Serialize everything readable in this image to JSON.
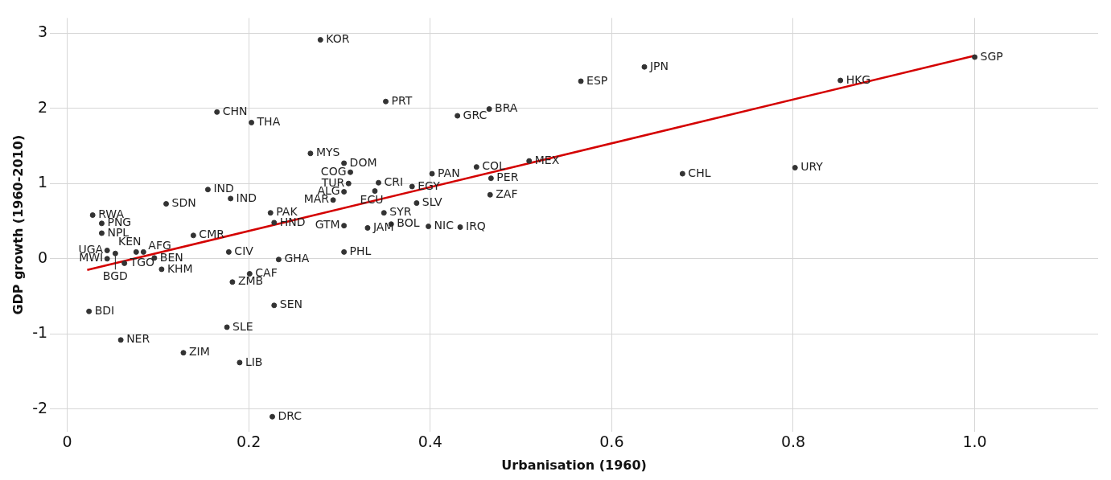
{
  "chart_data": {
    "type": "scatter",
    "xlabel": "Urbanisation (1960)",
    "ylabel": "GDP growth (1960-2010)",
    "xlim": [
      -0.019,
      1.136
    ],
    "ylim": [
      -2.3,
      3.2
    ],
    "xticks": [
      0,
      {
        "value": 0.2,
        "label": "0.2"
      },
      {
        "value": 0.4,
        "label": "0.4"
      },
      {
        "value": 0.6,
        "label": "0.6"
      },
      {
        "value": 0.8,
        "label": "0.8"
      },
      {
        "value": 1,
        "label": "1.0"
      }
    ],
    "yticks": [
      -2,
      -1,
      0,
      1,
      2,
      3
    ],
    "grid": true,
    "legend": false,
    "marker": "circle",
    "series": [
      {
        "color": "#333333",
        "x": [
          0.279,
          0.165,
          0.203,
          0.351,
          0.43,
          0.465,
          0.566,
          0.636,
          0.852,
          1.0,
          0.268,
          0.305,
          0.312,
          0.31,
          0.305,
          0.293,
          0.343,
          0.339,
          0.402,
          0.38,
          0.385,
          0.349,
          0.357,
          0.331,
          0.305,
          0.305,
          0.398,
          0.433,
          0.451,
          0.467,
          0.466,
          0.509,
          0.678,
          0.802,
          0.155,
          0.18,
          0.109,
          0.028,
          0.038,
          0.038,
          0.139,
          0.224,
          0.228,
          0.044,
          0.044,
          0.053,
          0.076,
          0.084,
          0.096,
          0.063,
          0.104,
          0.178,
          0.233,
          0.201,
          0.182,
          0.228,
          0.024,
          0.176,
          0.059,
          0.128,
          0.19,
          0.226
        ],
        "values": [
          2.91,
          1.95,
          1.81,
          2.09,
          1.9,
          1.99,
          2.36,
          2.55,
          2.37,
          2.68,
          1.4,
          1.27,
          1.15,
          1.0,
          0.89,
          0.78,
          1.01,
          0.9,
          1.13,
          0.96,
          0.74,
          0.61,
          0.46,
          0.41,
          0.44,
          0.09,
          0.43,
          0.42,
          1.22,
          1.07,
          0.85,
          1.3,
          1.13,
          1.21,
          0.92,
          0.8,
          0.73,
          0.58,
          0.47,
          0.34,
          0.31,
          0.61,
          0.48,
          0.11,
          0.0,
          0.07,
          0.09,
          0.09,
          0.01,
          -0.06,
          -0.14,
          0.09,
          -0.01,
          -0.2,
          -0.31,
          -0.62,
          -0.7,
          -0.91,
          -1.08,
          -1.25,
          -1.38,
          -2.1
        ]
      },
      {
        "type": "line",
        "marker": "none",
        "color": "#d40000",
        "x": [
          0.022,
          1.0
        ],
        "values": [
          -0.15,
          2.7
        ]
      }
    ],
    "annotations": [
      {
        "text": "KOR",
        "x": 0.279,
        "y": 2.91
      },
      {
        "text": "CHN",
        "x": 0.165,
        "y": 1.95
      },
      {
        "text": "THA",
        "x": 0.203,
        "y": 1.81
      },
      {
        "text": "PRT",
        "x": 0.351,
        "y": 2.09
      },
      {
        "text": "GRC",
        "x": 0.43,
        "y": 1.9
      },
      {
        "text": "BRA",
        "x": 0.465,
        "y": 1.99
      },
      {
        "text": "ESP",
        "x": 0.566,
        "y": 2.36
      },
      {
        "text": "JPN",
        "x": 0.636,
        "y": 2.55
      },
      {
        "text": "HKG",
        "x": 0.852,
        "y": 2.37
      },
      {
        "text": "SGP",
        "x": 1.0,
        "y": 2.68
      },
      {
        "text": "MYS",
        "x": 0.268,
        "y": 1.4
      },
      {
        "text": "DOM",
        "x": 0.305,
        "y": 1.27
      },
      {
        "text": "COG",
        "x": 0.312,
        "y": 1.15
      },
      {
        "text": "TUR",
        "x": 0.31,
        "y": 1.0
      },
      {
        "text": "ALG",
        "x": 0.305,
        "y": 0.89
      },
      {
        "text": "MAR",
        "x": 0.293,
        "y": 0.78
      },
      {
        "text": "CRI",
        "x": 0.343,
        "y": 1.01
      },
      {
        "text": "ECU",
        "x": 0.339,
        "y": 0.9
      },
      {
        "text": "PAN",
        "x": 0.402,
        "y": 1.13
      },
      {
        "text": "EGY",
        "x": 0.38,
        "y": 0.96
      },
      {
        "text": "SLV",
        "x": 0.385,
        "y": 0.74
      },
      {
        "text": "SYR",
        "x": 0.349,
        "y": 0.61
      },
      {
        "text": "BOL",
        "x": 0.357,
        "y": 0.46
      },
      {
        "text": "JAM",
        "x": 0.331,
        "y": 0.41
      },
      {
        "text": "GTM",
        "x": 0.305,
        "y": 0.44
      },
      {
        "text": "PHL",
        "x": 0.305,
        "y": 0.09
      },
      {
        "text": "NIC",
        "x": 0.398,
        "y": 0.43
      },
      {
        "text": "IRQ",
        "x": 0.433,
        "y": 0.42
      },
      {
        "text": "COL",
        "x": 0.451,
        "y": 1.22
      },
      {
        "text": "PER",
        "x": 0.467,
        "y": 1.07
      },
      {
        "text": "ZAF",
        "x": 0.466,
        "y": 0.85
      },
      {
        "text": "MEX",
        "x": 0.509,
        "y": 1.3
      },
      {
        "text": "CHL",
        "x": 0.678,
        "y": 1.13
      },
      {
        "text": "URY",
        "x": 0.802,
        "y": 1.21
      },
      {
        "text": "IND",
        "x": 0.155,
        "y": 0.92
      },
      {
        "text": "IND",
        "x": 0.18,
        "y": 0.8
      },
      {
        "text": "SDN",
        "x": 0.109,
        "y": 0.73
      },
      {
        "text": "RWA",
        "x": 0.028,
        "y": 0.58
      },
      {
        "text": "PNG",
        "x": 0.038,
        "y": 0.47
      },
      {
        "text": "NPL",
        "x": 0.038,
        "y": 0.34
      },
      {
        "text": "CMR",
        "x": 0.139,
        "y": 0.31
      },
      {
        "text": "PAK",
        "x": 0.224,
        "y": 0.61
      },
      {
        "text": "HND",
        "x": 0.228,
        "y": 0.48
      },
      {
        "text": "UGA",
        "x": 0.044,
        "y": 0.11
      },
      {
        "text": "MWI",
        "x": 0.044,
        "y": 0.0
      },
      {
        "text": "BGD",
        "x": 0.053,
        "y": 0.07
      },
      {
        "text": "KEN",
        "x": 0.076,
        "y": 0.09
      },
      {
        "text": "AFG",
        "x": 0.084,
        "y": 0.09
      },
      {
        "text": "BEN",
        "x": 0.096,
        "y": 0.01
      },
      {
        "text": "TGO",
        "x": 0.063,
        "y": -0.06
      },
      {
        "text": "KHM",
        "x": 0.104,
        "y": -0.14
      },
      {
        "text": "CIV",
        "x": 0.178,
        "y": 0.09
      },
      {
        "text": "GHA",
        "x": 0.233,
        "y": -0.01
      },
      {
        "text": "CAF",
        "x": 0.201,
        "y": -0.2
      },
      {
        "text": "ZMB",
        "x": 0.182,
        "y": -0.31
      },
      {
        "text": "SEN",
        "x": 0.228,
        "y": -0.62
      },
      {
        "text": "BDI",
        "x": 0.024,
        "y": -0.7
      },
      {
        "text": "SLE",
        "x": 0.176,
        "y": -0.91
      },
      {
        "text": "NER",
        "x": 0.059,
        "y": -1.08
      },
      {
        "text": "ZIM",
        "x": 0.128,
        "y": -1.25
      },
      {
        "text": "LIB",
        "x": 0.19,
        "y": -1.38
      },
      {
        "text": "DRC",
        "x": 0.226,
        "y": -2.1
      }
    ]
  }
}
